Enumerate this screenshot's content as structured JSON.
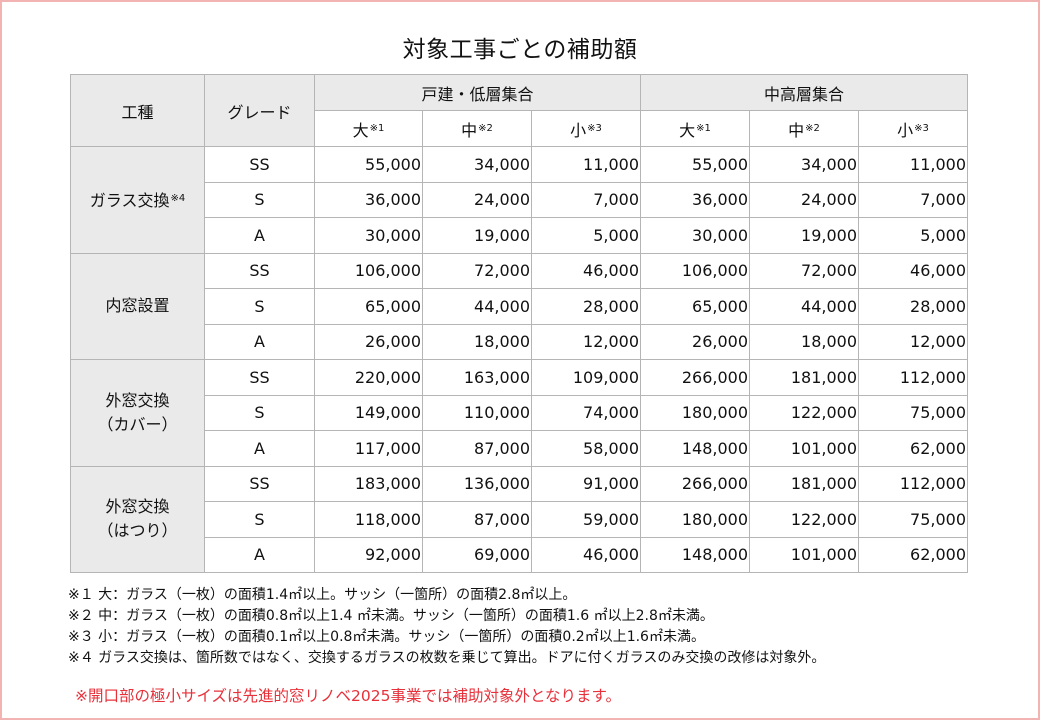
{
  "title": "対象工事ごとの補助額",
  "header": {
    "work_type": "工種",
    "grade": "グレード",
    "group1": "戸建・低層集合",
    "group2": "中高層集合",
    "sizes": [
      {
        "label": "大",
        "mark": "※1"
      },
      {
        "label": "中",
        "mark": "※2"
      },
      {
        "label": "小",
        "mark": "※3"
      },
      {
        "label": "大",
        "mark": "※1"
      },
      {
        "label": "中",
        "mark": "※2"
      },
      {
        "label": "小",
        "mark": "※3"
      }
    ]
  },
  "categories": [
    {
      "name_line1": "ガラス交換",
      "name_line2": "",
      "mark": "※4",
      "rows": [
        {
          "grade": "SS",
          "values": [
            "55,000",
            "34,000",
            "11,000",
            "55,000",
            "34,000",
            "11,000"
          ]
        },
        {
          "grade": "S",
          "values": [
            "36,000",
            "24,000",
            "7,000",
            "36,000",
            "24,000",
            "7,000"
          ]
        },
        {
          "grade": "A",
          "values": [
            "30,000",
            "19,000",
            "5,000",
            "30,000",
            "19,000",
            "5,000"
          ]
        }
      ]
    },
    {
      "name_line1": "内窓設置",
      "name_line2": "",
      "mark": "",
      "rows": [
        {
          "grade": "SS",
          "values": [
            "106,000",
            "72,000",
            "46,000",
            "106,000",
            "72,000",
            "46,000"
          ]
        },
        {
          "grade": "S",
          "values": [
            "65,000",
            "44,000",
            "28,000",
            "65,000",
            "44,000",
            "28,000"
          ]
        },
        {
          "grade": "A",
          "values": [
            "26,000",
            "18,000",
            "12,000",
            "26,000",
            "18,000",
            "12,000"
          ]
        }
      ]
    },
    {
      "name_line1": "外窓交換",
      "name_line2": "（カバー）",
      "mark": "",
      "rows": [
        {
          "grade": "SS",
          "values": [
            "220,000",
            "163,000",
            "109,000",
            "266,000",
            "181,000",
            "112,000"
          ]
        },
        {
          "grade": "S",
          "values": [
            "149,000",
            "110,000",
            "74,000",
            "180,000",
            "122,000",
            "75,000"
          ]
        },
        {
          "grade": "A",
          "values": [
            "117,000",
            "87,000",
            "58,000",
            "148,000",
            "101,000",
            "62,000"
          ]
        }
      ]
    },
    {
      "name_line1": "外窓交換",
      "name_line2": "（はつり）",
      "mark": "",
      "rows": [
        {
          "grade": "SS",
          "values": [
            "183,000",
            "136,000",
            "91,000",
            "266,000",
            "181,000",
            "112,000"
          ]
        },
        {
          "grade": "S",
          "values": [
            "118,000",
            "87,000",
            "59,000",
            "180,000",
            "122,000",
            "75,000"
          ]
        },
        {
          "grade": "A",
          "values": [
            "92,000",
            "69,000",
            "46,000",
            "148,000",
            "101,000",
            "62,000"
          ]
        }
      ]
    }
  ],
  "notes": [
    "※１ 大：ガラス（一枚）の面積1.4㎡以上。サッシ（一箇所）の面積2.8㎡以上。",
    "※２ 中：ガラス（一枚）の面積0.8㎡以上1.4 ㎡未満。サッシ（一箇所）の面積1.6 ㎡以上2.8㎡未満。",
    "※３ 小：ガラス（一枚）の面積0.1㎡以上0.8㎡未満。サッシ（一箇所）の面積0.2㎡以上1.6㎡未満。",
    "※４ ガラス交換は、箇所数ではなく、交換するガラスの枚数を乗じて算出。ドアに付くガラスのみ交換の改修は対象外。"
  ],
  "warning": "※開口部の極小サイズは先進的窓リノベ2025事業では補助対象外となります。",
  "colors": {
    "frame": "#f2b3b3",
    "header_bg": "#eaeaea",
    "grid": "#b5b5b5",
    "warning": "#e8303a"
  }
}
